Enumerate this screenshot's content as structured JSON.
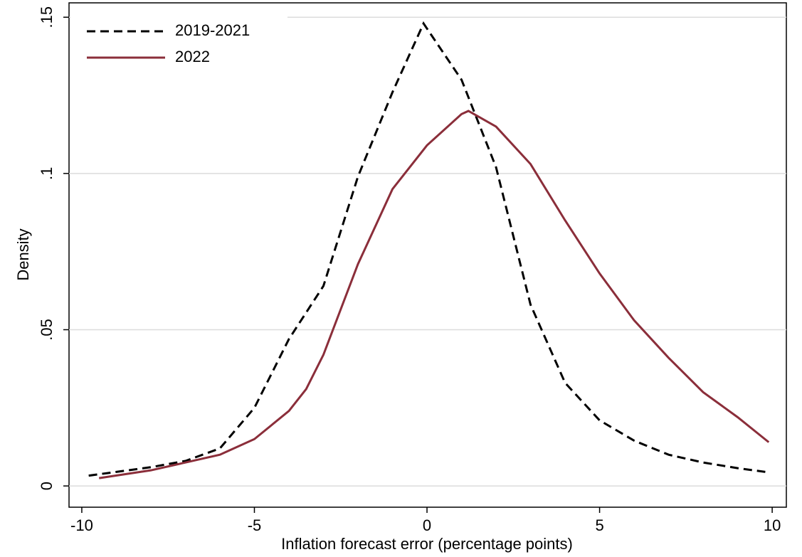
{
  "chart_data": {
    "type": "line",
    "x_label": "Inflation forecast error (percentage points)",
    "y_label": "Density",
    "xlim": [
      -10.37,
      10.41
    ],
    "xticks": [
      -10,
      -5,
      0,
      5,
      10
    ],
    "ylim": [
      -0.0068,
      0.1546
    ],
    "yticks": [
      0,
      {
        "value": 0.05,
        "label": ".05"
      },
      {
        "value": 0.1,
        "label": ".1"
      },
      {
        "value": 0.15,
        "label": ".15"
      }
    ],
    "grid": true,
    "legend": "upper left",
    "series": [
      {
        "name": "2019-2021",
        "color": "#000000",
        "dash": true,
        "x": [
          -9.8,
          -9,
          -8,
          -7,
          -6,
          -5,
          -4,
          -3,
          -2,
          -1,
          -0.1,
          1,
          2,
          3,
          4,
          5,
          6,
          7,
          8,
          9,
          9.8
        ],
        "values": [
          0.0033,
          0.0045,
          0.006,
          0.008,
          0.012,
          0.025,
          0.047,
          0.064,
          0.099,
          0.126,
          0.148,
          0.13,
          0.102,
          0.058,
          0.033,
          0.021,
          0.0145,
          0.01,
          0.0075,
          0.0057,
          0.0045
        ]
      },
      {
        "name": "2022",
        "color": "#8b2e3a",
        "dash": false,
        "x": [
          -9.5,
          -8,
          -7,
          -6,
          -5,
          -4,
          -3.5,
          -3,
          -2,
          -1,
          0,
          1,
          1.2,
          2,
          3,
          4,
          5,
          6,
          7,
          8,
          9,
          9.9
        ],
        "values": [
          0.0025,
          0.005,
          0.0075,
          0.01,
          0.015,
          0.024,
          0.031,
          0.042,
          0.071,
          0.095,
          0.109,
          0.119,
          0.12,
          0.115,
          0.103,
          0.085,
          0.068,
          0.053,
          0.041,
          0.03,
          0.022,
          0.014
        ]
      }
    ]
  }
}
